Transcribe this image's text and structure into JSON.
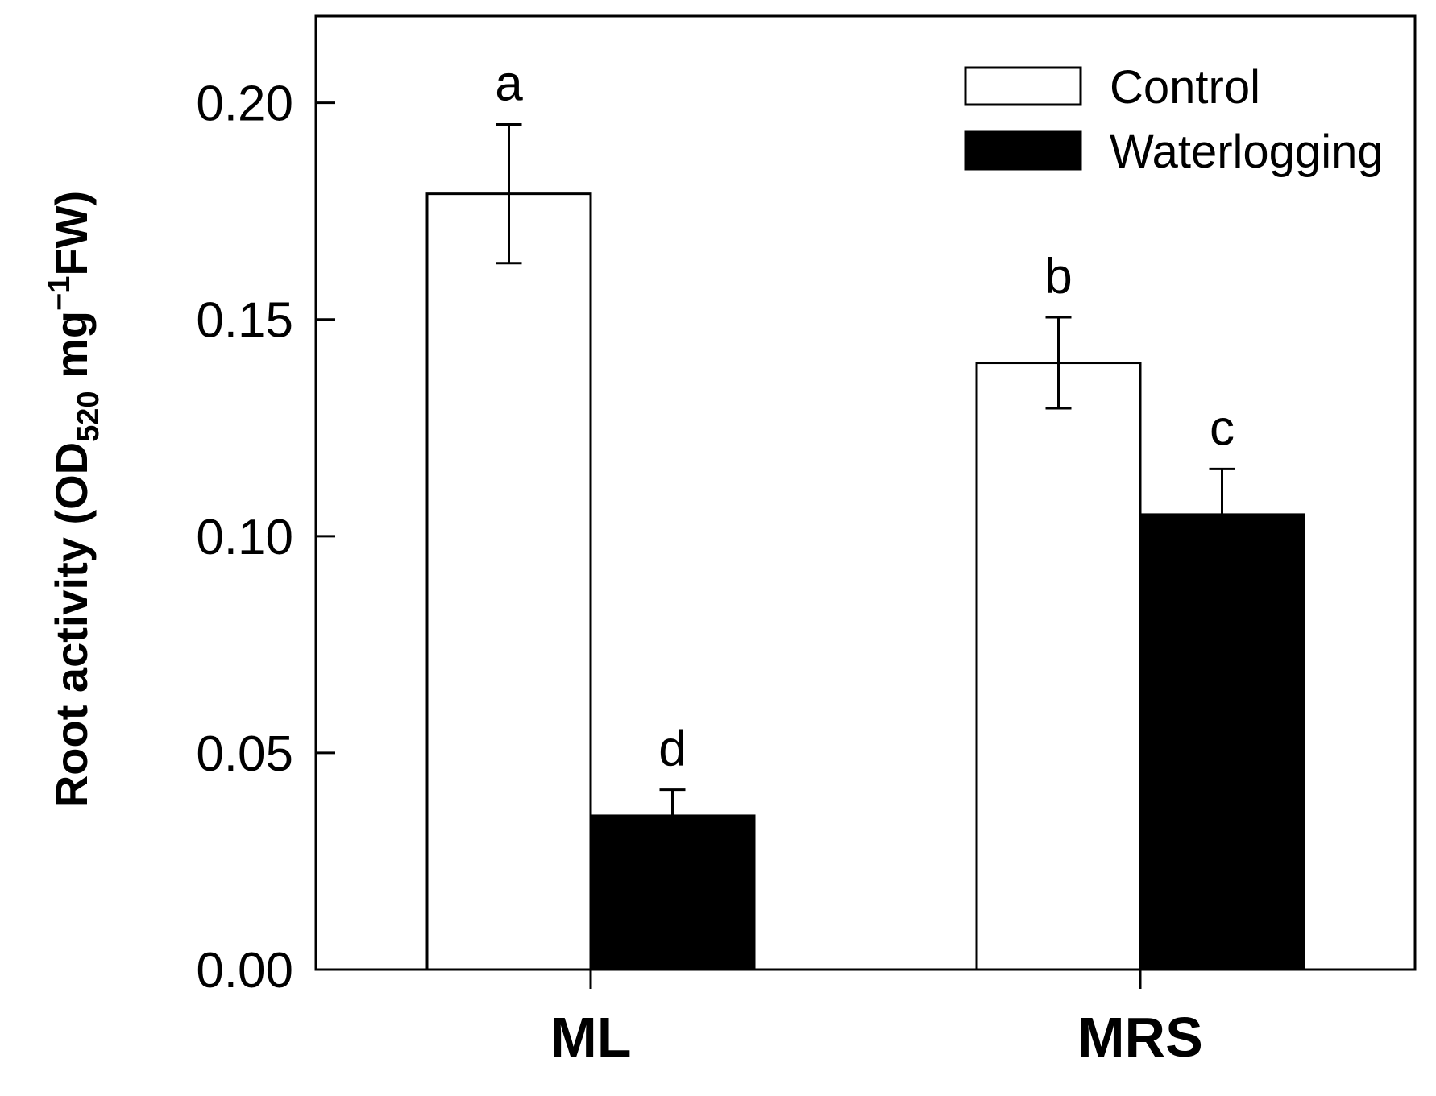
{
  "chart_data": {
    "type": "bar",
    "title": "",
    "xlabel": "",
    "ylabel": {
      "main": "Root activity (OD",
      "subscript": "520",
      "unit_pre": " mg",
      "superscript": "−1",
      "unit_post": "FW)"
    },
    "ylim": [
      0,
      0.22
    ],
    "yticks": [
      "0.00",
      "0.05",
      "0.10",
      "0.15",
      "0.20"
    ],
    "ytick_values": [
      0,
      0.05,
      0.1,
      0.15,
      0.2
    ],
    "categories": [
      "ML",
      "MRS"
    ],
    "series": [
      {
        "name": "Control",
        "fill": "#ffffff",
        "values": [
          0.179,
          0.14
        ],
        "errors": [
          0.016,
          0.0105
        ],
        "letters": [
          "a",
          "b"
        ]
      },
      {
        "name": "Waterlogging",
        "fill": "#000000",
        "values": [
          0.0355,
          0.105
        ],
        "errors": [
          0.006,
          0.0105
        ],
        "letters": [
          "d",
          "c"
        ]
      }
    ],
    "legend_position": "top-right",
    "grid": false
  }
}
